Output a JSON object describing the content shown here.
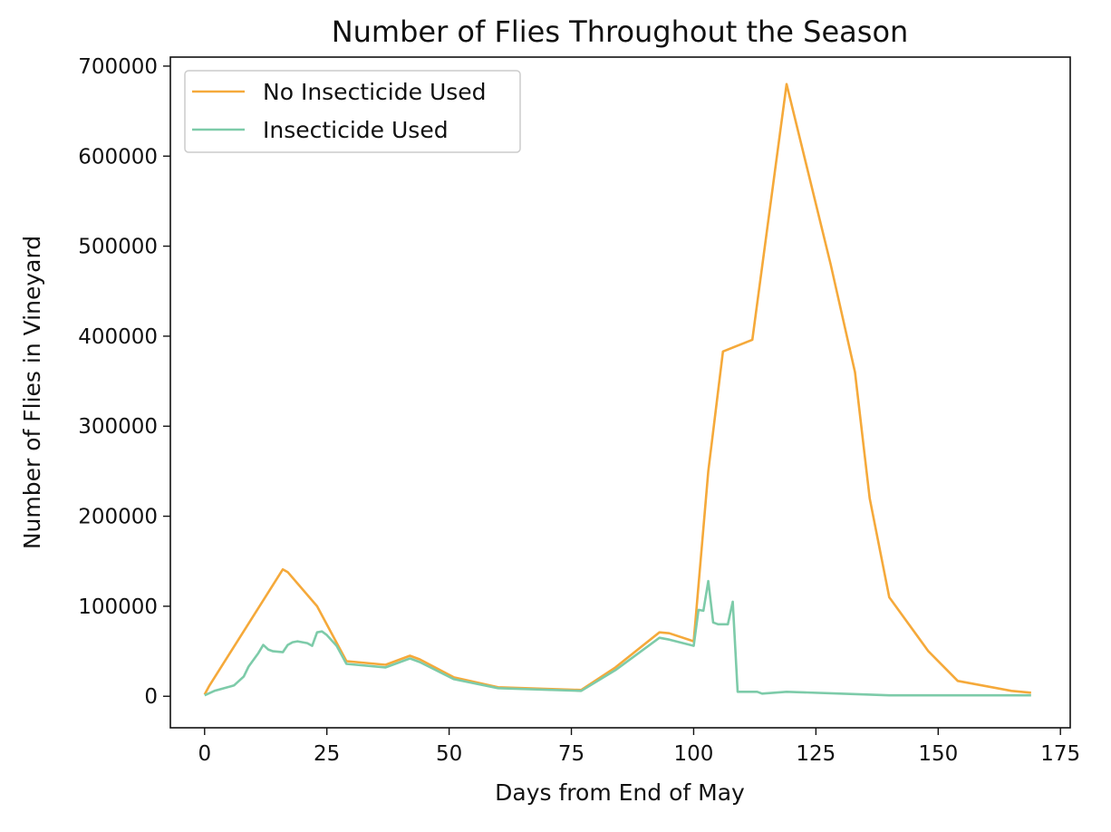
{
  "chart_data": {
    "type": "line",
    "title": "Number of Flies Throughout the Season",
    "xlabel": "Days from End of May",
    "ylabel": "Number of Flies in Vineyard",
    "xlim": [
      -7,
      177
    ],
    "ylim": [
      -35000,
      710000
    ],
    "xticks": [
      0,
      25,
      50,
      75,
      100,
      125,
      150,
      175
    ],
    "yticks": [
      0,
      100000,
      200000,
      300000,
      400000,
      500000,
      600000,
      700000
    ],
    "grid": false,
    "legend_position": "top-left",
    "series": [
      {
        "name": "No Insecticide Used",
        "color": "#f5a93a",
        "points": [
          [
            0,
            2000
          ],
          [
            1,
            12000
          ],
          [
            16,
            141000
          ],
          [
            17,
            138000
          ],
          [
            23,
            100000
          ],
          [
            29,
            39000
          ],
          [
            37,
            35000
          ],
          [
            42,
            45000
          ],
          [
            44,
            41000
          ],
          [
            51,
            21000
          ],
          [
            60,
            10000
          ],
          [
            77,
            7000
          ],
          [
            84,
            32000
          ],
          [
            93,
            71000
          ],
          [
            95,
            70000
          ],
          [
            100,
            61000
          ],
          [
            103,
            250000
          ],
          [
            106,
            383000
          ],
          [
            112,
            396000
          ],
          [
            119,
            680000
          ],
          [
            128,
            480000
          ],
          [
            133,
            360000
          ],
          [
            136,
            220000
          ],
          [
            140,
            110000
          ],
          [
            148,
            50000
          ],
          [
            154,
            17000
          ],
          [
            165,
            6000
          ],
          [
            169,
            4000
          ]
        ]
      },
      {
        "name": "Insecticide Used",
        "color": "#7dcba9",
        "points": [
          [
            0,
            1000
          ],
          [
            2,
            6000
          ],
          [
            6,
            12000
          ],
          [
            8,
            22000
          ],
          [
            9,
            33000
          ],
          [
            11,
            48000
          ],
          [
            12,
            57000
          ],
          [
            13,
            52000
          ],
          [
            14,
            50000
          ],
          [
            16,
            49000
          ],
          [
            17,
            57000
          ],
          [
            18,
            60000
          ],
          [
            19,
            61000
          ],
          [
            21,
            59000
          ],
          [
            22,
            56000
          ],
          [
            23,
            71000
          ],
          [
            24,
            72000
          ],
          [
            25,
            68000
          ],
          [
            27,
            56000
          ],
          [
            29,
            36000
          ],
          [
            37,
            32000
          ],
          [
            42,
            42000
          ],
          [
            44,
            38000
          ],
          [
            51,
            19000
          ],
          [
            60,
            9000
          ],
          [
            77,
            6000
          ],
          [
            84,
            29000
          ],
          [
            93,
            65000
          ],
          [
            95,
            63000
          ],
          [
            100,
            56000
          ],
          [
            101,
            96000
          ],
          [
            102,
            95000
          ],
          [
            103,
            128000
          ],
          [
            104,
            82000
          ],
          [
            105,
            80000
          ],
          [
            107,
            80000
          ],
          [
            108,
            105000
          ],
          [
            109,
            5000
          ],
          [
            113,
            5000
          ],
          [
            114,
            3000
          ],
          [
            119,
            5000
          ],
          [
            130,
            3000
          ],
          [
            140,
            1000
          ],
          [
            169,
            1000
          ]
        ]
      }
    ]
  }
}
